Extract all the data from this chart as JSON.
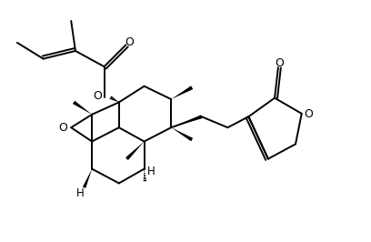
{
  "background": "#ffffff",
  "line_color": "#000000",
  "line_width": 1.4,
  "figsize": [
    4.08,
    2.66
  ],
  "dpi": 100,
  "xlim": [
    0,
    8.5
  ],
  "ylim": [
    0,
    5.5
  ]
}
